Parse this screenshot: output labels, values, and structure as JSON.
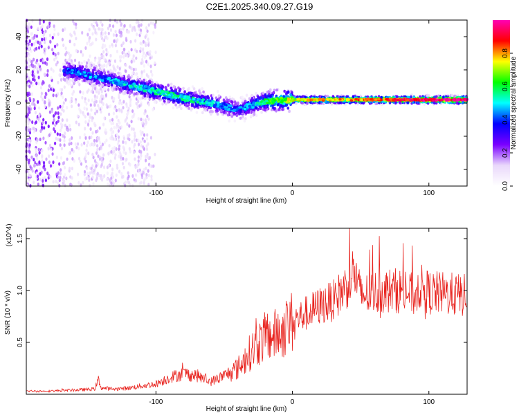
{
  "figure": {
    "title": "C2E1.2025.340.09.27.G19"
  },
  "chart_data": [
    {
      "type": "heatmap",
      "title": "",
      "xlabel": "Height of straight line (km)",
      "ylabel": "Frequency (Hz)",
      "xlim": [
        -195,
        128
      ],
      "ylim": [
        -50,
        50
      ],
      "x_ticks": [
        -100,
        0,
        100
      ],
      "x_tick_labels": [
        "-100",
        "0",
        "100"
      ],
      "y_ticks": [
        -40,
        -20,
        0,
        20,
        40
      ],
      "y_tick_labels": [
        "-40",
        "-20",
        "0",
        "20",
        "40"
      ],
      "colorbar": {
        "label": "Normalized spectral amplitude",
        "range": [
          0,
          1
        ],
        "ticks": [
          0,
          0.2,
          0.4,
          0.6,
          0.8
        ],
        "tick_labels": [
          "0.0",
          "0.2",
          "0.4",
          "0.6",
          "0.8"
        ],
        "colors": [
          "#ffffff",
          "#e9d8fb",
          "#7a00ff",
          "#0000ff",
          "#00ffff",
          "#00ff00",
          "#ffff00",
          "#ff0000",
          "#ff00b4"
        ]
      },
      "ridge": {
        "x": [
          -160,
          -140,
          -120,
          -100,
          -80,
          -60,
          -40,
          -20,
          0,
          20,
          40,
          60,
          80,
          100,
          128
        ],
        "frequency": [
          19,
          15,
          11,
          7,
          3,
          0,
          -4,
          1,
          2,
          2,
          2,
          2,
          2,
          2,
          2
        ],
        "amplitude": [
          0.4,
          0.4,
          0.45,
          0.5,
          0.5,
          0.45,
          0.35,
          0.55,
          0.7,
          0.75,
          0.75,
          0.8,
          0.85,
          0.9,
          0.95
        ]
      }
    },
    {
      "type": "line",
      "title": "",
      "xlabel": "Height of straight line (km)",
      "ylabel": "SNR (10 * v/v)",
      "y_multiplier": "(x10^4)",
      "xlim": [
        -195,
        128
      ],
      "ylim": [
        0,
        1.6
      ],
      "x_ticks": [
        -100,
        0,
        100
      ],
      "x_tick_labels": [
        "-100",
        "0",
        "100"
      ],
      "y_ticks": [
        0.5,
        1.0,
        1.5
      ],
      "y_tick_labels": [
        "0.5",
        "1.0",
        "1.5"
      ],
      "line_color": "#e8231e",
      "series": [
        {
          "name": "SNR",
          "x": [
            -195,
            -180,
            -160,
            -145,
            -142,
            -140,
            -130,
            -120,
            -100,
            -90,
            -80,
            -70,
            -60,
            -50,
            -40,
            -30,
            -20,
            -10,
            0,
            10,
            20,
            30,
            40,
            45,
            50,
            60,
            70,
            80,
            90,
            93,
            95,
            100,
            110,
            128
          ],
          "y": [
            0.03,
            0.03,
            0.04,
            0.05,
            0.14,
            0.06,
            0.05,
            0.06,
            0.1,
            0.16,
            0.2,
            0.18,
            0.12,
            0.18,
            0.25,
            0.42,
            0.55,
            0.58,
            0.7,
            0.78,
            0.85,
            0.9,
            1.05,
            1.2,
            0.95,
            0.98,
            1.0,
            1.0,
            0.95,
            1.05,
            1.02,
            0.98,
            0.97,
            0.95
          ]
        }
      ]
    }
  ]
}
